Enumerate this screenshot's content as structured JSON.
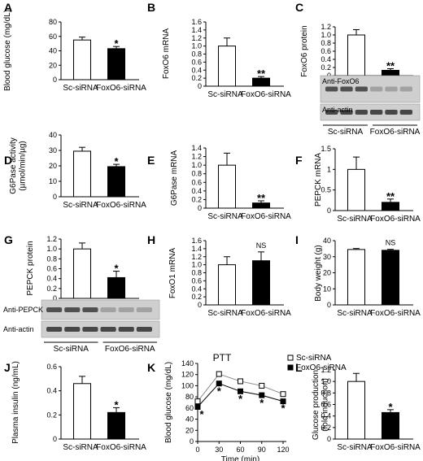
{
  "figure": {
    "panels": [
      {
        "id": "A",
        "type": "bar",
        "ylabel": "Blood glucose (mg/dL)",
        "ylim": [
          0,
          80
        ],
        "ticks": [
          0,
          20,
          40,
          60,
          80
        ],
        "tick_labels": [
          "0",
          "20",
          "40",
          "60",
          "80"
        ],
        "categories": [
          "Sc-siRNA",
          "FoxO6-siRNA"
        ],
        "values": [
          55,
          43
        ],
        "errors": [
          4,
          3
        ],
        "annotation": "*"
      },
      {
        "id": "B",
        "type": "bar",
        "ylabel": "FoxO6 mRNA",
        "ylim": [
          0,
          1.6
        ],
        "ticks": [
          0,
          0.2,
          0.4,
          0.6,
          0.8,
          1.0,
          1.2,
          1.4,
          1.6
        ],
        "tick_labels": [
          "0",
          "0.2",
          "0.4",
          "0.6",
          "0.8",
          "1.0",
          "1.2",
          "1.4",
          "1.6"
        ],
        "categories": [
          "Sc-siRNA",
          "FoxO6-siRNA"
        ],
        "values": [
          1.0,
          0.2
        ],
        "errors": [
          0.2,
          0.04
        ],
        "annotation": "**"
      },
      {
        "id": "C",
        "type": "bar",
        "ylabel": "FoxO6 protein",
        "ylim": [
          0,
          1.2
        ],
        "ticks": [
          0,
          0.2,
          0.4,
          0.6,
          0.8,
          1.0,
          1.2
        ],
        "tick_labels": [
          "0",
          "0.2",
          "0.4",
          "0.6",
          "0.8",
          "1.0",
          "1.2"
        ],
        "categories": [
          "",
          ""
        ],
        "values": [
          1.0,
          0.13
        ],
        "errors": [
          0.13,
          0.04
        ],
        "annotation": "**",
        "blot": {
          "rows": [
            "Anti-FoxO6",
            "Anti-actin"
          ],
          "groups": [
            "Sc-siRNA",
            "FoxO6-siRNA"
          ]
        }
      },
      {
        "id": "D",
        "type": "bar",
        "ylabel": "G6Pase activity (µmol/min/µg)",
        "ylim": [
          0,
          40
        ],
        "ticks": [
          0,
          10,
          20,
          30,
          40
        ],
        "tick_labels": [
          "0",
          "10",
          "20",
          "30",
          "40"
        ],
        "categories": [
          "Sc-siRNA",
          "FoxO6-siRNA"
        ],
        "values": [
          29.5,
          19.5
        ],
        "errors": [
          2.5,
          1.5
        ],
        "annotation": "*"
      },
      {
        "id": "E",
        "type": "bar",
        "ylabel": "G6Pase mRNA",
        "ylim": [
          0,
          1.4
        ],
        "ticks": [
          0,
          0.2,
          0.4,
          0.6,
          0.8,
          1.0,
          1.2,
          1.4
        ],
        "tick_labels": [
          "0",
          "0.2",
          "0.4",
          "0.6",
          "0.8",
          "1.0",
          "1.2",
          "1.4"
        ],
        "categories": [
          "Sc-siRNA",
          "FoxO6-siRNA"
        ],
        "values": [
          1.0,
          0.12
        ],
        "errors": [
          0.28,
          0.05
        ],
        "annotation": "**"
      },
      {
        "id": "F",
        "type": "bar",
        "ylabel": "PEPCK mRNA",
        "ylim": [
          0,
          1.5
        ],
        "ticks": [
          0,
          0.5,
          1.0,
          1.5
        ],
        "tick_labels": [
          "0",
          "0.5",
          "1",
          "1.5"
        ],
        "categories": [
          "Sc-siRNA",
          "FoxO6-siRNA"
        ],
        "values": [
          1.0,
          0.2
        ],
        "errors": [
          0.3,
          0.08
        ],
        "annotation": "**"
      },
      {
        "id": "G",
        "type": "bar",
        "ylabel": "PEPCK protein",
        "ylim": [
          0,
          1.2
        ],
        "ticks": [
          0,
          0.2,
          0.4,
          0.6,
          0.8,
          1.0,
          1.2
        ],
        "tick_labels": [
          "0",
          "0.2",
          "0.4",
          "0.6",
          "0.8",
          "1.0",
          "1.2"
        ],
        "categories": [
          "",
          ""
        ],
        "values": [
          1.0,
          0.42
        ],
        "errors": [
          0.12,
          0.13
        ],
        "annotation": "*",
        "blot": {
          "rows": [
            "Anti-PEPCK",
            "Anti-actin"
          ],
          "groups": [
            "Sc-siRNA",
            "FoxO6-siRNA"
          ]
        }
      },
      {
        "id": "H",
        "type": "bar",
        "ylabel": "FoxO1 mRNA",
        "ylim": [
          0,
          1.6
        ],
        "ticks": [
          0,
          0.2,
          0.4,
          0.6,
          0.8,
          1.0,
          1.2,
          1.4,
          1.6
        ],
        "tick_labels": [
          "0",
          "0.2",
          "0.4",
          "0.6",
          "0.8",
          "1.0",
          "1.2",
          "1.4",
          "1.6"
        ],
        "categories": [
          "Sc-siRNA",
          "FoxO6-siRNA"
        ],
        "values": [
          1.0,
          1.1
        ],
        "errors": [
          0.2,
          0.22
        ],
        "annotation": "NS"
      },
      {
        "id": "I",
        "type": "bar",
        "ylabel": "Body weight (g)",
        "ylim": [
          0,
          40
        ],
        "ticks": [
          0,
          10,
          20,
          30,
          40
        ],
        "tick_labels": [
          "0",
          "10",
          "20",
          "30",
          "40"
        ],
        "categories": [
          "Sc-siRNA",
          "FoxO6-siRNA"
        ],
        "values": [
          34.5,
          34.0
        ],
        "errors": [
          0.6,
          0.6
        ],
        "annotation": "NS"
      },
      {
        "id": "J",
        "type": "bar",
        "ylabel": "Plasma insulin (ng/mL)",
        "ylim": [
          0,
          0.6
        ],
        "ticks": [
          0,
          0.2,
          0.4,
          0.6
        ],
        "tick_labels": [
          "0",
          "0.2",
          "0.4",
          "0.6"
        ],
        "categories": [
          "Sc-siRNA",
          "FoxO6-siRNA"
        ],
        "values": [
          0.46,
          0.22
        ],
        "errors": [
          0.06,
          0.04
        ],
        "annotation": "*"
      },
      {
        "id": "K",
        "type": "line",
        "title": "PTT",
        "ylabel": "Blood glucose (mg/dL)",
        "xlabel": "Time (min)",
        "ylim": [
          0,
          140
        ],
        "yticks": [
          0,
          20,
          40,
          60,
          80,
          100,
          120,
          140
        ],
        "xlim": [
          0,
          120
        ],
        "xticks": [
          0,
          30,
          60,
          90,
          120
        ],
        "legend": [
          "Sc-siRNA",
          "FoxO6-siRNA"
        ],
        "series": [
          {
            "name": "Sc-siRNA",
            "x": [
              0,
              30,
              60,
              90,
              120
            ],
            "y": [
              72,
              121,
              108,
              100,
              85
            ],
            "err": [
              4,
              5,
              5,
              4,
              3
            ]
          },
          {
            "name": "FoxO6-siRNA",
            "x": [
              0,
              30,
              60,
              90,
              120
            ],
            "y": [
              62,
              104,
              90,
              83,
              72
            ],
            "err": [
              4,
              4,
              4,
              4,
              3
            ]
          }
        ],
        "stars": [
          0,
          30,
          60,
          90,
          120
        ]
      },
      {
        "id": "L",
        "type": "bar",
        "ylabel": "Glucose production (fold induction)",
        "ylim": [
          0,
          1.2
        ],
        "ticks": [
          0,
          0.2,
          0.4,
          0.6,
          0.8,
          1.0,
          1.2
        ],
        "tick_labels": [
          "0",
          "0.2",
          "0.4",
          "0.6",
          "0.8",
          "1.0",
          "1.2"
        ],
        "categories": [
          "Sc-siRNA",
          "FoxO6-siRNA"
        ],
        "values": [
          1.0,
          0.46
        ],
        "errors": [
          0.14,
          0.05
        ],
        "annotation": "*"
      }
    ]
  },
  "chart_data": [
    {
      "type": "bar",
      "panel": "A",
      "categories": [
        "Sc-siRNA",
        "FoxO6-siRNA"
      ],
      "values": [
        55,
        43
      ],
      "ylabel": "Blood glucose (mg/dL)",
      "ylim": [
        0,
        80
      ]
    },
    {
      "type": "bar",
      "panel": "B",
      "categories": [
        "Sc-siRNA",
        "FoxO6-siRNA"
      ],
      "values": [
        1.0,
        0.2
      ],
      "ylabel": "FoxO6 mRNA",
      "ylim": [
        0,
        1.6
      ]
    },
    {
      "type": "bar",
      "panel": "C",
      "categories": [
        "Sc-siRNA",
        "FoxO6-siRNA"
      ],
      "values": [
        1.0,
        0.13
      ],
      "ylabel": "FoxO6 protein",
      "ylim": [
        0,
        1.2
      ]
    },
    {
      "type": "bar",
      "panel": "D",
      "categories": [
        "Sc-siRNA",
        "FoxO6-siRNA"
      ],
      "values": [
        29.5,
        19.5
      ],
      "ylabel": "G6Pase activity (µmol/min/µg)",
      "ylim": [
        0,
        40
      ]
    },
    {
      "type": "bar",
      "panel": "E",
      "categories": [
        "Sc-siRNA",
        "FoxO6-siRNA"
      ],
      "values": [
        1.0,
        0.12
      ],
      "ylabel": "G6Pase mRNA",
      "ylim": [
        0,
        1.4
      ]
    },
    {
      "type": "bar",
      "panel": "F",
      "categories": [
        "Sc-siRNA",
        "FoxO6-siRNA"
      ],
      "values": [
        1.0,
        0.2
      ],
      "ylabel": "PEPCK mRNA",
      "ylim": [
        0,
        1.5
      ]
    },
    {
      "type": "bar",
      "panel": "G",
      "categories": [
        "Sc-siRNA",
        "FoxO6-siRNA"
      ],
      "values": [
        1.0,
        0.42
      ],
      "ylabel": "PEPCK protein",
      "ylim": [
        0,
        1.2
      ]
    },
    {
      "type": "bar",
      "panel": "H",
      "categories": [
        "Sc-siRNA",
        "FoxO6-siRNA"
      ],
      "values": [
        1.0,
        1.1
      ],
      "ylabel": "FoxO1 mRNA",
      "ylim": [
        0,
        1.6
      ]
    },
    {
      "type": "bar",
      "panel": "I",
      "categories": [
        "Sc-siRNA",
        "FoxO6-siRNA"
      ],
      "values": [
        34.5,
        34.0
      ],
      "ylabel": "Body weight (g)",
      "ylim": [
        0,
        40
      ]
    },
    {
      "type": "bar",
      "panel": "J",
      "categories": [
        "Sc-siRNA",
        "FoxO6-siRNA"
      ],
      "values": [
        0.46,
        0.22
      ],
      "ylabel": "Plasma insulin (ng/mL)",
      "ylim": [
        0,
        0.6
      ]
    },
    {
      "type": "line",
      "panel": "K",
      "title": "PTT",
      "x": [
        0,
        30,
        60,
        90,
        120
      ],
      "series": [
        {
          "name": "Sc-siRNA",
          "values": [
            72,
            121,
            108,
            100,
            85
          ]
        },
        {
          "name": "FoxO6-siRNA",
          "values": [
            62,
            104,
            90,
            83,
            72
          ]
        }
      ],
      "xlabel": "Time (min)",
      "ylabel": "Blood glucose (mg/dL)",
      "ylim": [
        0,
        140
      ]
    },
    {
      "type": "bar",
      "panel": "L",
      "categories": [
        "Sc-siRNA",
        "FoxO6-siRNA"
      ],
      "values": [
        1.0,
        0.46
      ],
      "ylabel": "Glucose production (fold induction)",
      "ylim": [
        0,
        1.2
      ]
    }
  ]
}
